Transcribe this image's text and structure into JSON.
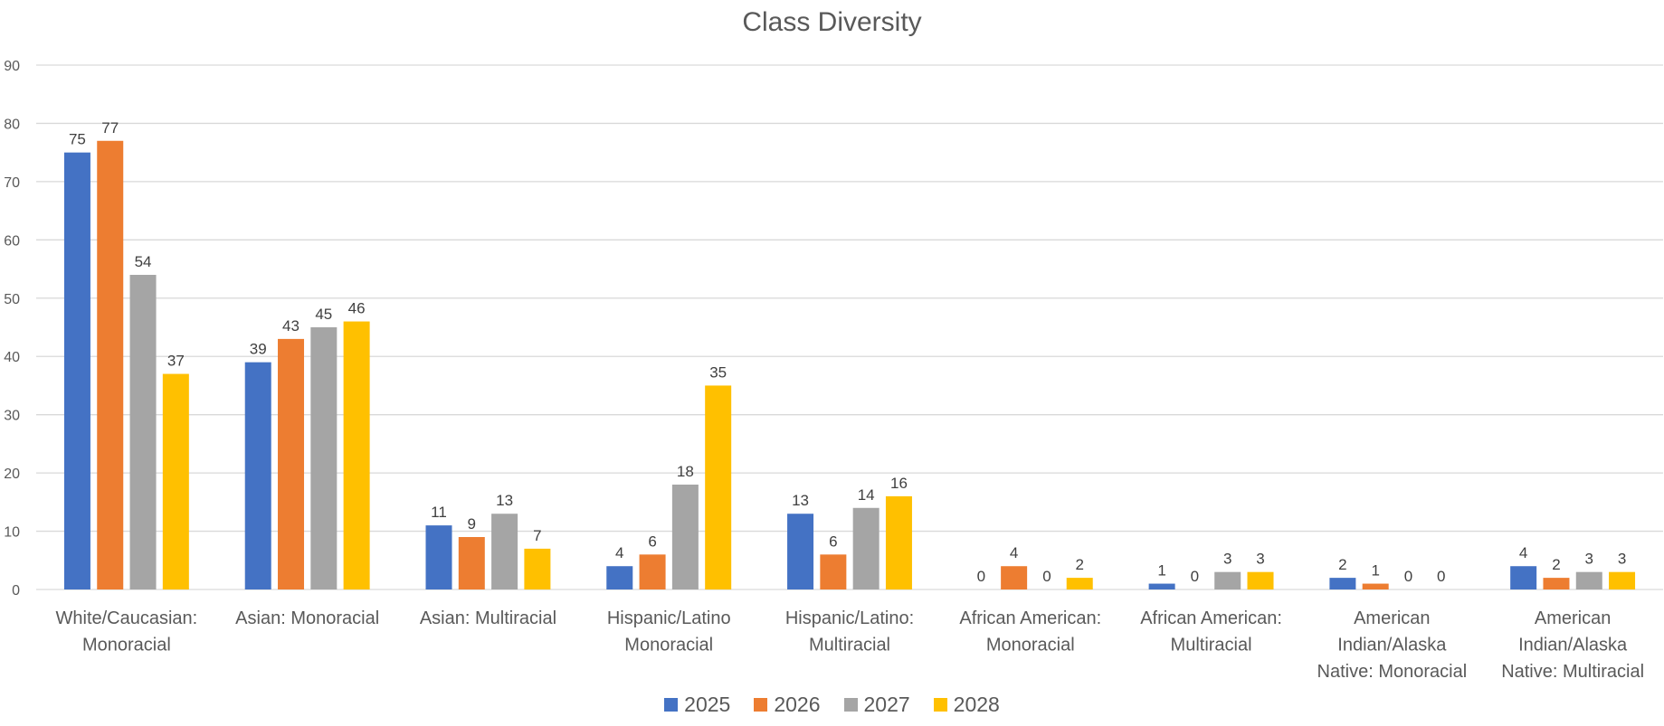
{
  "chart_data": {
    "type": "bar",
    "title": "Class Diversity",
    "xlabel": "",
    "ylabel": "",
    "ylim": [
      0,
      90
    ],
    "yticks": [
      0,
      10,
      20,
      30,
      40,
      50,
      60,
      70,
      80,
      90
    ],
    "grid": true,
    "legend_position": "bottom",
    "categories": [
      [
        "White/Caucasian:",
        "Monoracial"
      ],
      [
        "Asian: Monoracial"
      ],
      [
        "Asian: Multiracial"
      ],
      [
        "Hispanic/Latino",
        "Monoracial"
      ],
      [
        "Hispanic/Latino:",
        "Multiracial"
      ],
      [
        "African American:",
        "Monoracial"
      ],
      [
        "African American:",
        "Multiracial"
      ],
      [
        "American",
        "Indian/Alaska",
        "Native: Monoracial"
      ],
      [
        "American",
        "Indian/Alaska",
        "Native: Multiracial"
      ]
    ],
    "series": [
      {
        "name": "2025",
        "color": "#4472C4",
        "values": [
          75,
          39,
          11,
          4,
          13,
          0,
          1,
          2,
          4
        ]
      },
      {
        "name": "2026",
        "color": "#ED7D31",
        "values": [
          77,
          43,
          9,
          6,
          6,
          4,
          0,
          1,
          2
        ]
      },
      {
        "name": "2027",
        "color": "#A5A5A5",
        "values": [
          54,
          45,
          13,
          18,
          14,
          0,
          3,
          0,
          3
        ]
      },
      {
        "name": "2028",
        "color": "#FFC000",
        "values": [
          37,
          46,
          7,
          35,
          16,
          2,
          3,
          0,
          3
        ]
      }
    ]
  }
}
